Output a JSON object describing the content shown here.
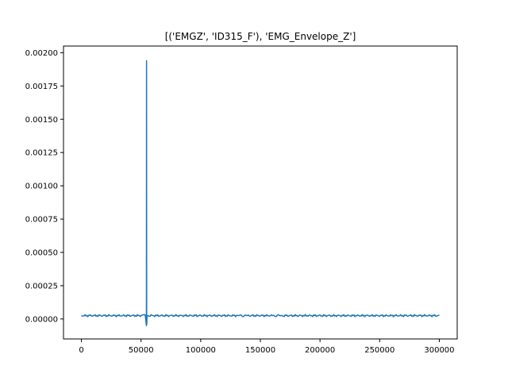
{
  "chart_data": {
    "type": "line",
    "title": "[('EMGZ', 'ID315_F'), 'EMG_Envelope_Z']",
    "xlabel": "",
    "ylabel": "",
    "xlim": [
      -15000,
      315000
    ],
    "ylim": [
      -0.00015,
      0.00205
    ],
    "grid": false,
    "line_color": "#1f77b4",
    "x_ticks": [
      0,
      50000,
      100000,
      150000,
      200000,
      250000,
      300000
    ],
    "x_tick_labels": [
      "0",
      "50000",
      "100000",
      "150000",
      "200000",
      "250000",
      "300000"
    ],
    "y_ticks": [
      0.0,
      0.00025,
      0.0005,
      0.00075,
      0.001,
      0.00125,
      0.0015,
      0.00175,
      0.002
    ],
    "y_tick_labels": [
      "0.00000",
      "0.00025",
      "0.00050",
      "0.00075",
      "0.00100",
      "0.00125",
      "0.00150",
      "0.00175",
      "0.00200"
    ],
    "series": [
      {
        "values_description_free": true,
        "x": [
          0,
          10000,
          20000,
          30000,
          40000,
          50000,
          53500,
          54500,
          54600,
          54700,
          54800,
          55000,
          56000,
          60000,
          70000,
          80000,
          90000,
          100000,
          110000,
          120000,
          130000,
          135000,
          140000,
          150000,
          160000,
          165000,
          170000,
          180000,
          190000,
          200000,
          210000,
          220000,
          230000,
          240000,
          250000,
          260000,
          270000,
          280000,
          290000,
          300000
        ],
        "y": [
          3e-05,
          2e-05,
          3e-05,
          2e-05,
          3e-05,
          2e-05,
          3e-05,
          -5e-05,
          0.00194,
          2e-05,
          -4e-05,
          2e-05,
          3e-05,
          2e-05,
          3e-05,
          2e-05,
          3e-05,
          2e-05,
          3e-05,
          2e-05,
          3e-05,
          4e-05,
          2e-05,
          3e-05,
          2e-05,
          4e-05,
          2e-05,
          3e-05,
          2e-05,
          3e-05,
          2e-05,
          3e-05,
          2e-05,
          3e-05,
          2e-05,
          3e-05,
          2e-05,
          3e-05,
          2e-05,
          3e-05
        ]
      }
    ]
  }
}
